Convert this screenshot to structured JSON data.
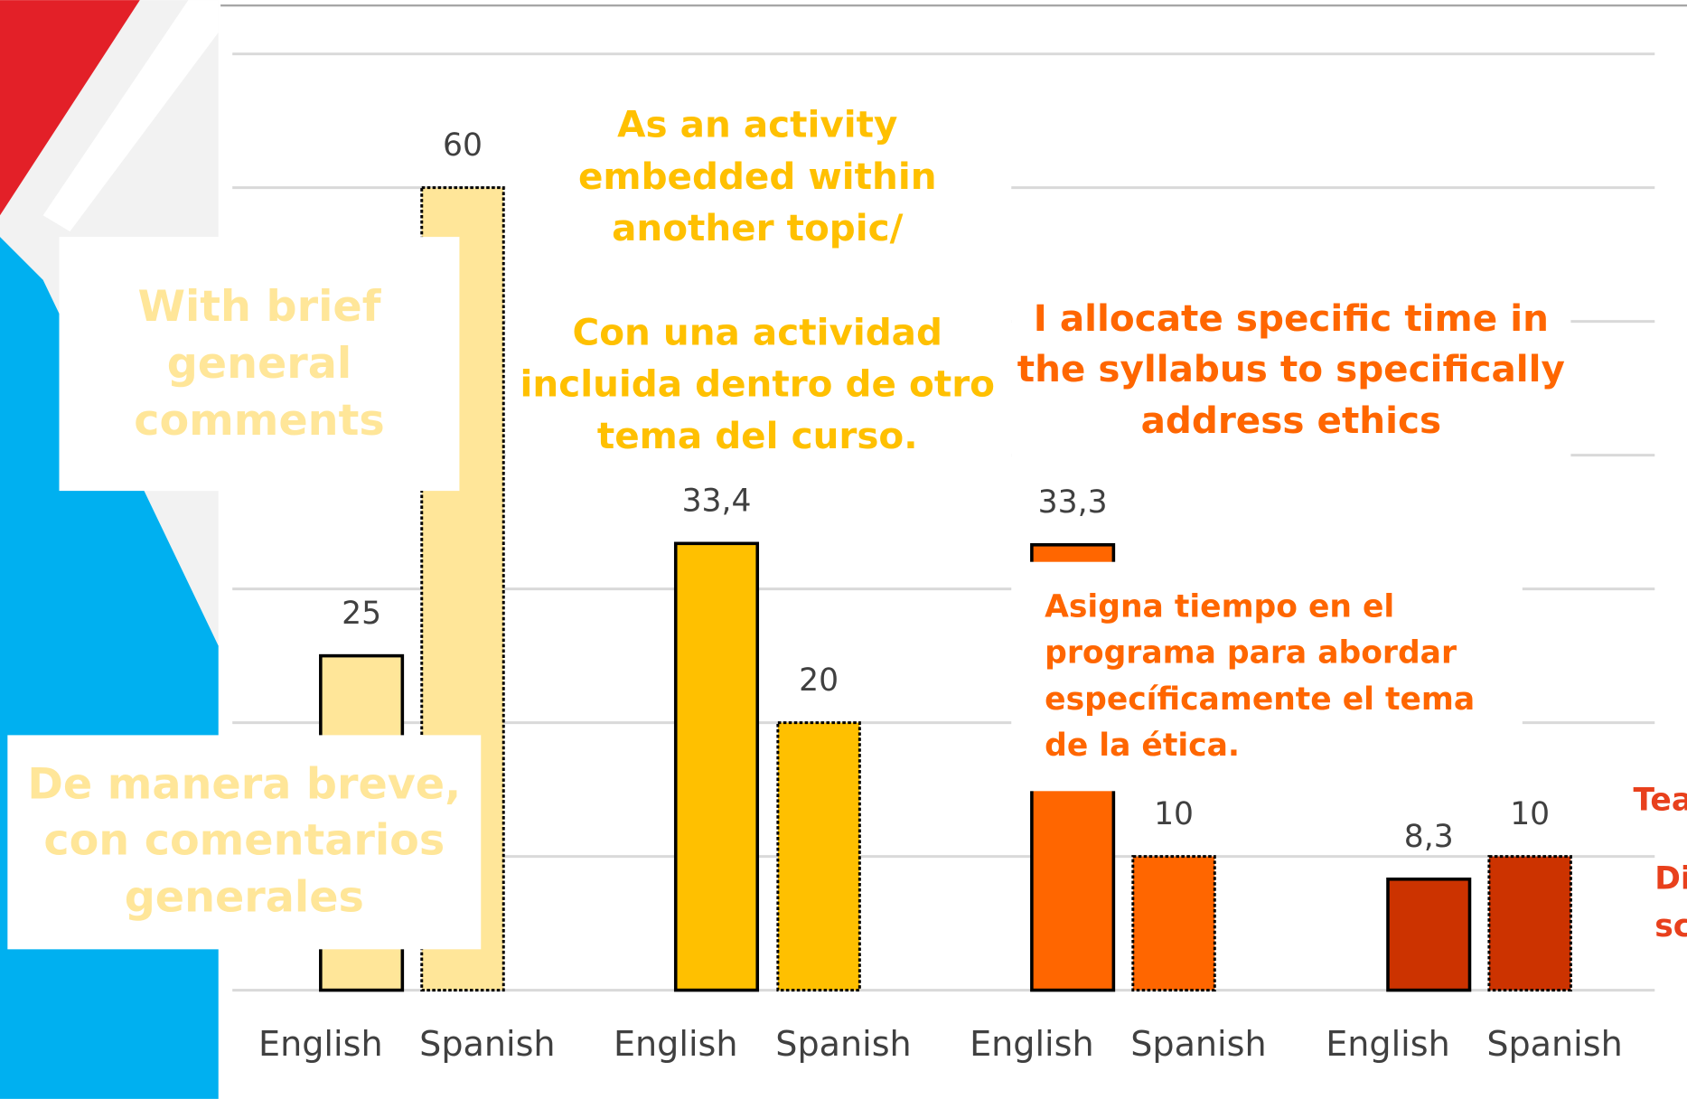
{
  "chart_data": {
    "type": "bar",
    "categories": [
      "English",
      "Spanish",
      "English",
      "Spanish",
      "English",
      "Spanish",
      "English",
      "Spanish"
    ],
    "values": [
      25,
      60,
      33.4,
      20,
      33.3,
      10,
      8.3,
      10
    ],
    "value_labels": [
      "25",
      "60",
      "33,4",
      "20",
      "33,3",
      "10",
      "8,3",
      "10"
    ],
    "colors": [
      "#ffe699",
      "#ffe699",
      "#ffc000",
      "#ffc000",
      "#ff6600",
      "#ff6600",
      "#cc3300",
      "#cc3300"
    ],
    "dashed": [
      false,
      true,
      false,
      true,
      false,
      true,
      false,
      true
    ],
    "ylim": [
      0,
      70
    ],
    "yticks": [
      0,
      10,
      20,
      30,
      40,
      50,
      60,
      70
    ],
    "grid": true,
    "annotations": [
      {
        "lines": [
          "With brief",
          "general",
          "comments"
        ],
        "color": "#ffe699"
      },
      {
        "lines": [
          "As an activity",
          "embedded within",
          "another topic/"
        ],
        "color": "#ffc000"
      },
      {
        "lines": [
          "Con una  actividad",
          "incluida dentro de otro",
          "tema del curso."
        ],
        "color": "#ffc000"
      },
      {
        "lines": [
          "I allocate specific time in",
          "the syllabus to specifically",
          "address ethics"
        ],
        "color": "#ff6600"
      },
      {
        "lines": [
          "Asigna tiempo en el",
          "programa para abordar",
          "específicamente el tema",
          "de la ética."
        ],
        "color": "#ff6600"
      },
      {
        "lines": [
          "De manera breve,",
          "con comentarios",
          "generales"
        ],
        "color": "#ffe699"
      },
      {
        "lines": [
          "Tea",
          "Di",
          "sc"
        ],
        "color": "#e8401c"
      }
    ]
  }
}
